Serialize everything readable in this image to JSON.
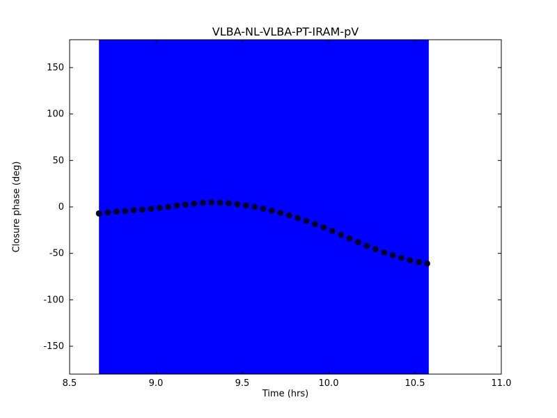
{
  "chart_data": {
    "type": "scatter",
    "title": "VLBA-NL-VLBA-PT-IRAM-pV",
    "xlabel": "Time (hrs)",
    "ylabel": "Closure phase (deg)",
    "xlim": [
      8.5,
      11.0
    ],
    "ylim": [
      -180,
      180
    ],
    "grid": false,
    "legend": "none",
    "x_ticks": [
      8.5,
      9.0,
      9.5,
      10.0,
      10.5,
      11.0
    ],
    "x_tick_labels": [
      "8.5",
      "9.0",
      "9.5",
      "10.0",
      "10.5",
      "11.0"
    ],
    "y_ticks": [
      -150,
      -100,
      -50,
      0,
      50,
      100,
      150
    ],
    "y_tick_labels": [
      "-150",
      "-100",
      "-50",
      "0",
      "50",
      "100",
      "150"
    ],
    "error_band": {
      "x_start": 8.67,
      "x_end": 10.58,
      "y_min": -180,
      "y_max": 180,
      "color": "#0000ff"
    },
    "series": [
      {
        "name": "closure-phase",
        "marker": "circle",
        "marker_color": "#000033",
        "marker_radius_px": 4.5,
        "x": [
          8.67,
          8.72,
          8.77,
          8.82,
          8.87,
          8.92,
          8.97,
          9.02,
          9.07,
          9.12,
          9.17,
          9.22,
          9.27,
          9.32,
          9.37,
          9.42,
          9.47,
          9.52,
          9.57,
          9.62,
          9.67,
          9.72,
          9.77,
          9.82,
          9.87,
          9.92,
          9.97,
          10.02,
          10.07,
          10.12,
          10.17,
          10.22,
          10.27,
          10.32,
          10.37,
          10.42,
          10.47,
          10.52,
          10.57
        ],
        "y": [
          -7,
          -6,
          -5,
          -4.5,
          -3.5,
          -3,
          -2,
          -1,
          0,
          1.5,
          2.5,
          3.5,
          4.5,
          5,
          4.5,
          4,
          3,
          1.5,
          0,
          -2,
          -4,
          -6.5,
          -9,
          -12,
          -15,
          -18.5,
          -22,
          -26,
          -30,
          -34,
          -38,
          -42,
          -45.5,
          -49,
          -52,
          -55,
          -57.5,
          -59.5,
          -61
        ]
      }
    ],
    "colors": {
      "band": "#0000ff",
      "marker": "#000033",
      "axes": "#000000",
      "background": "#ffffff"
    }
  }
}
